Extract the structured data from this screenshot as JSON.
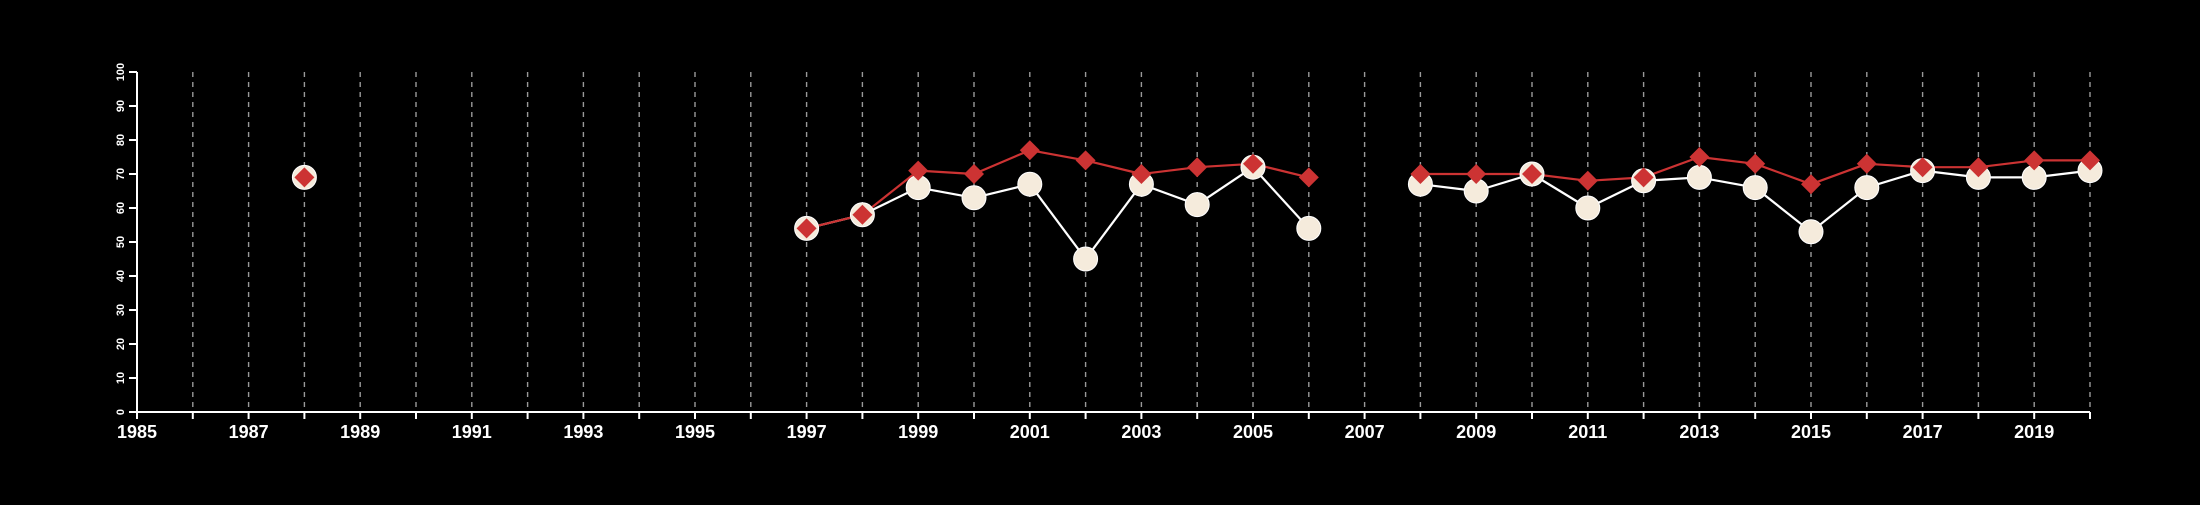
{
  "chart_data": {
    "type": "line",
    "title": "",
    "xlabel": "",
    "ylabel": "",
    "xlim": [
      1985,
      2020
    ],
    "ylim": [
      0,
      100
    ],
    "x_ticks": [
      1985,
      1986,
      1987,
      1988,
      1989,
      1990,
      1991,
      1992,
      1993,
      1994,
      1995,
      1996,
      1997,
      1998,
      1999,
      2000,
      2001,
      2002,
      2003,
      2004,
      2005,
      2006,
      2007,
      2008,
      2009,
      2010,
      2011,
      2012,
      2013,
      2014,
      2015,
      2016,
      2017,
      2018,
      2019,
      2020
    ],
    "x_tick_labels": [
      "1985",
      "1987",
      "1989",
      "1991",
      "1993",
      "1995",
      "1997",
      "1999",
      "2001",
      "2003",
      "2005",
      "2007",
      "2009",
      "2011",
      "2013",
      "2015",
      "2017",
      "2019"
    ],
    "y_ticks": [
      0,
      10,
      20,
      30,
      40,
      50,
      60,
      70,
      80,
      90,
      100
    ],
    "y_tick_labels": [
      "0",
      "10",
      "20",
      "30",
      "40",
      "50",
      "60",
      "70",
      "80",
      "90",
      "100"
    ],
    "vertical_grid": "dashed",
    "legend": "none",
    "x": [
      1988,
      1997,
      1998,
      1999,
      2000,
      2001,
      2002,
      2003,
      2004,
      2005,
      2006,
      2008,
      2009,
      2010,
      2011,
      2012,
      2013,
      2014,
      2015,
      2016,
      2017,
      2018,
      2019,
      2020
    ],
    "series": [
      {
        "marker": "circle",
        "color": "#f5ebdc",
        "values": [
          69,
          54,
          58,
          66,
          63,
          67,
          45,
          67,
          61,
          72,
          54,
          67,
          65,
          70,
          60,
          68,
          69,
          66,
          53,
          66,
          71,
          69,
          69,
          71
        ]
      },
      {
        "marker": "diamond",
        "color": "#cc3333",
        "values": [
          69,
          54,
          58,
          71,
          70,
          77,
          74,
          70,
          72,
          73,
          69,
          70,
          70,
          70,
          68,
          69,
          75,
          73,
          67,
          73,
          72,
          72,
          74,
          74
        ]
      }
    ]
  }
}
